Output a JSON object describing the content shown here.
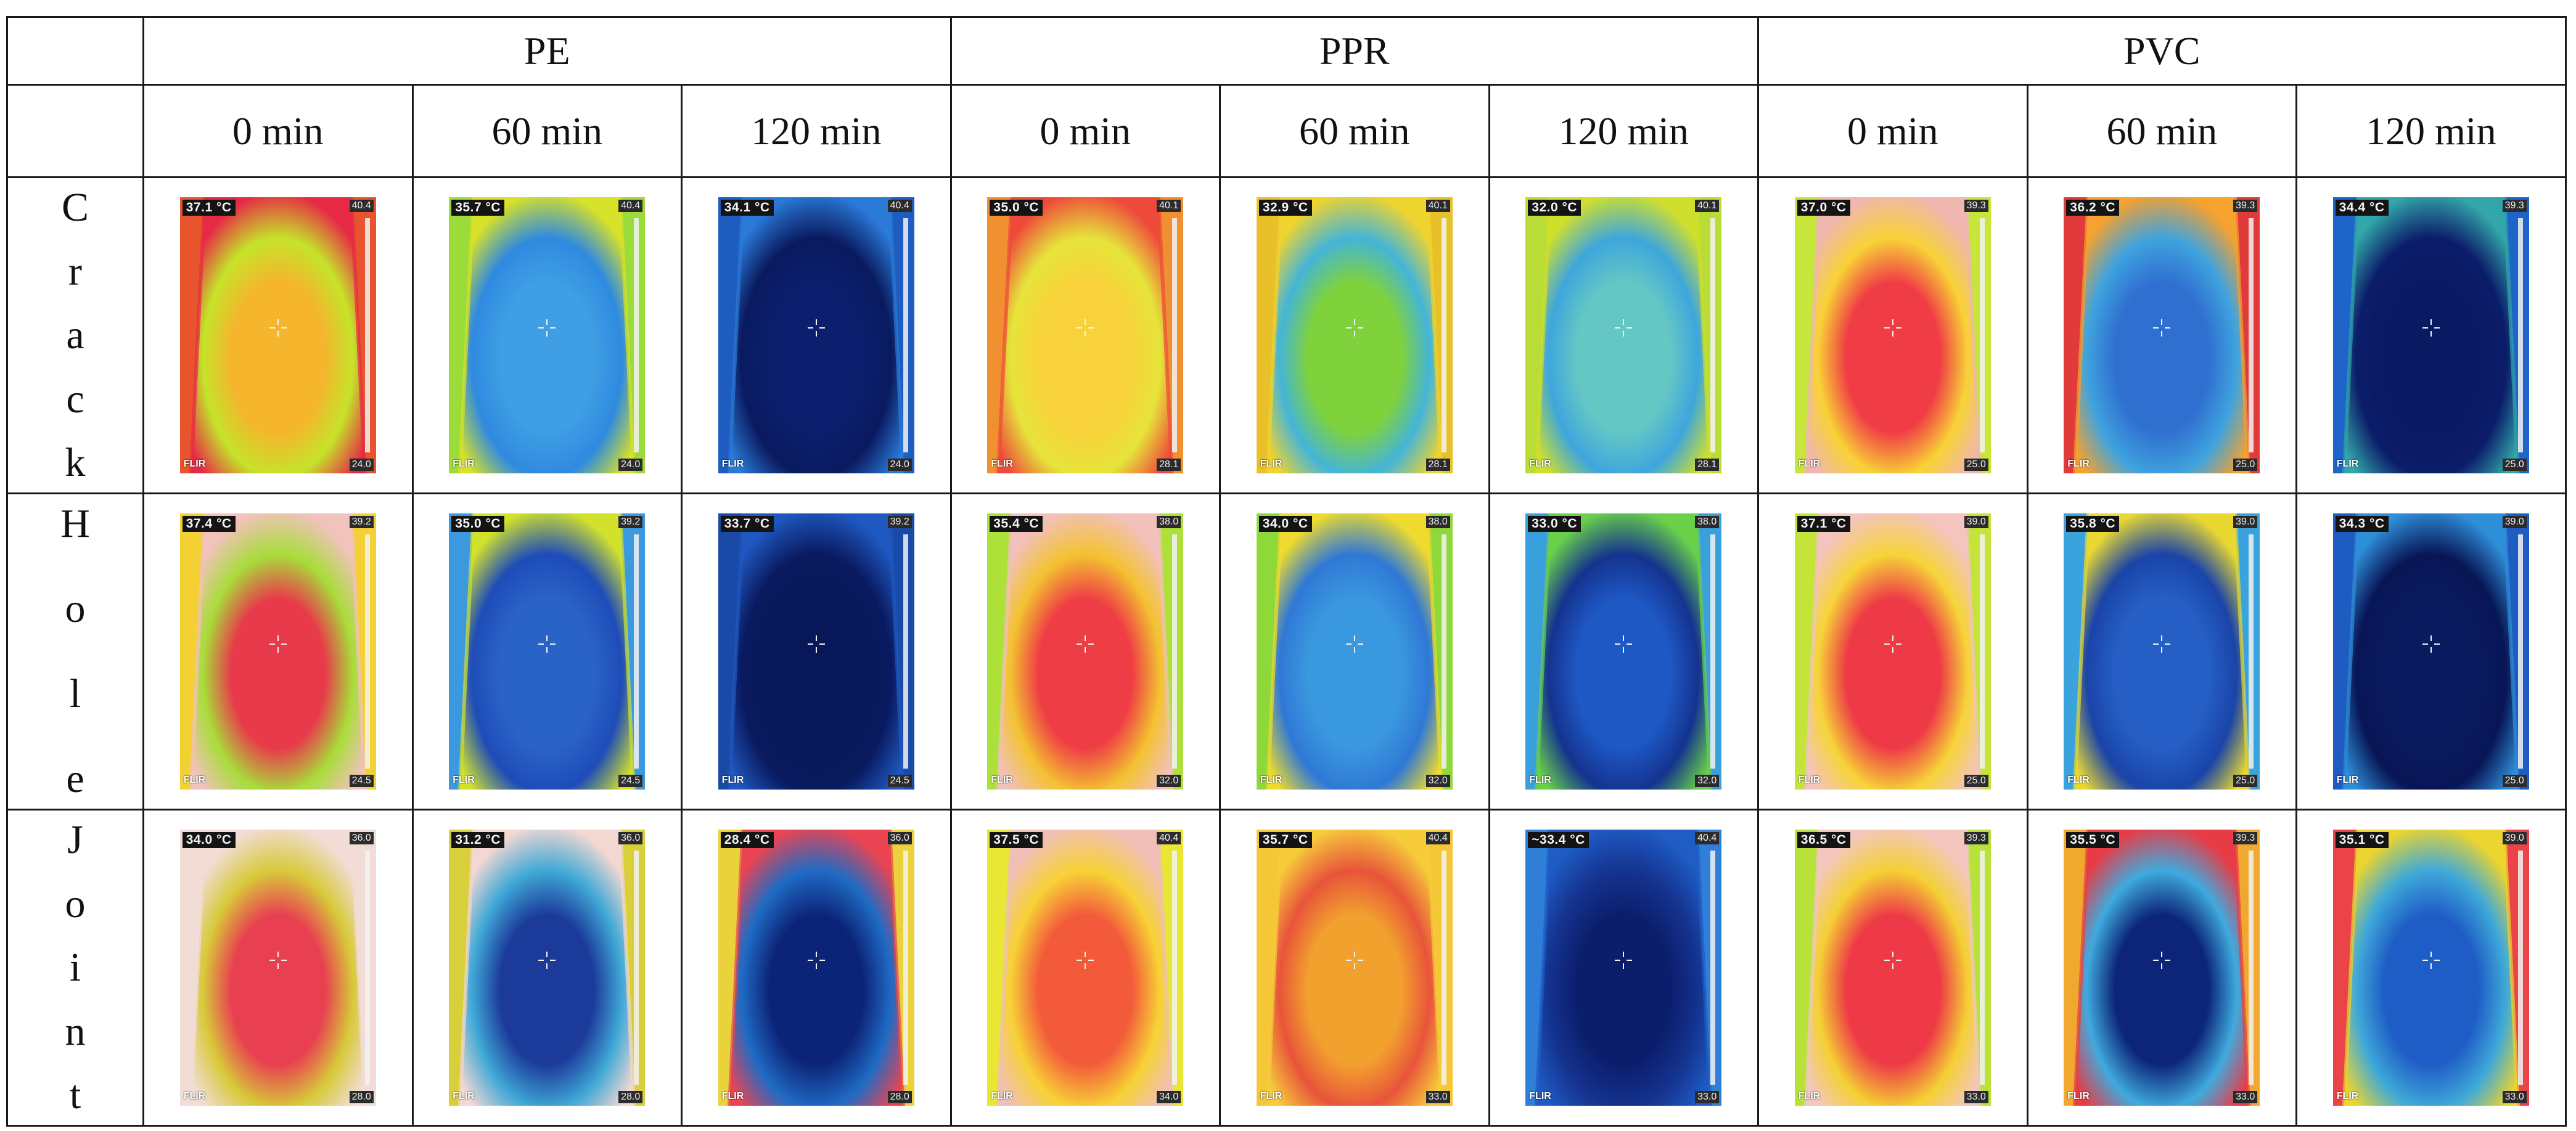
{
  "table": {
    "materials": [
      "PE",
      "PPR",
      "PVC"
    ],
    "times": [
      "0 min",
      "60 min",
      "120 min",
      "0 min",
      "60 min",
      "120 min",
      "0 min",
      "60 min",
      "120 min"
    ],
    "rows": [
      {
        "label": "Crack",
        "letters": [
          "C",
          "r",
          "a",
          "c",
          "k"
        ],
        "cells": [
          {
            "temp": "37.1 °C",
            "max": "40.4",
            "min": "24.0",
            "logo": "FLIR",
            "palette": [
              "#e62a45",
              "#f5b52c",
              "#c5e32a",
              "#e8542e"
            ]
          },
          {
            "temp": "35.7 °C",
            "max": "40.4",
            "min": "24.0",
            "logo": "FLIR",
            "palette": [
              "#d8e228",
              "#3f9ee4",
              "#2f8ae0",
              "#9bdc3a"
            ]
          },
          {
            "temp": "34.1 °C",
            "max": "40.4",
            "min": "24.0",
            "logo": "FLIR",
            "palette": [
              "#2a7ad8",
              "#0b1f6e",
              "#0a1a5f",
              "#1f5cc0"
            ]
          },
          {
            "temp": "35.0 °C",
            "max": "40.1",
            "min": "28.1",
            "logo": "FLIR",
            "palette": [
              "#ee4a3a",
              "#f8d23a",
              "#e6e43a",
              "#f09030"
            ]
          },
          {
            "temp": "32.9 °C",
            "max": "40.1",
            "min": "28.1",
            "logo": "FLIR",
            "palette": [
              "#f0d42e",
              "#7fd23c",
              "#44b5d8",
              "#e7c02a"
            ]
          },
          {
            "temp": "32.0 °C",
            "max": "40.1",
            "min": "28.1",
            "logo": "FLIR",
            "palette": [
              "#cfe02c",
              "#64c7c4",
              "#3ea6dd",
              "#b9dc36"
            ]
          },
          {
            "temp": "37.0 °C",
            "max": "39.3",
            "min": "25.0",
            "logo": "FLIR",
            "palette": [
              "#f0b7b0",
              "#f03c45",
              "#f8d236",
              "#c6e63a"
            ]
          },
          {
            "temp": "36.2 °C",
            "max": "39.3",
            "min": "25.0",
            "logo": "FLIR",
            "palette": [
              "#f6a22e",
              "#2f6fd0",
              "#3fa3de",
              "#e03a3a"
            ]
          },
          {
            "temp": "34.4 °C",
            "max": "39.3",
            "min": "25.0",
            "logo": "FLIR",
            "palette": [
              "#32a6a8",
              "#0a1a62",
              "#0b1c6a",
              "#1f64c8"
            ]
          }
        ]
      },
      {
        "label": "Hole",
        "letters": [
          "H",
          "o",
          "l",
          "e"
        ],
        "cells": [
          {
            "temp": "37.4 °C",
            "max": "39.2",
            "min": "24.5",
            "logo": "FLIR",
            "palette": [
              "#f2c2bd",
              "#e83a4a",
              "#a9dc3a",
              "#f3d033"
            ]
          },
          {
            "temp": "35.0 °C",
            "max": "39.2",
            "min": "24.5",
            "logo": "FLIR",
            "palette": [
              "#d2e22c",
              "#2a63c8",
              "#1e4cb8",
              "#3b99e0"
            ]
          },
          {
            "temp": "33.7 °C",
            "max": "39.2",
            "min": "24.5",
            "logo": "FLIR",
            "palette": [
              "#1f58c0",
              "#081757",
              "#0a1a60",
              "#1a4aa8"
            ]
          },
          {
            "temp": "35.4 °C",
            "max": "38.0",
            "min": "32.0",
            "logo": "FLIR",
            "palette": [
              "#f2c1bb",
              "#ef3d45",
              "#f3c231",
              "#aee03a"
            ]
          },
          {
            "temp": "34.0 °C",
            "max": "38.0",
            "min": "32.0",
            "logo": "FLIR",
            "palette": [
              "#eedb2e",
              "#3a98de",
              "#2f78d6",
              "#8ed83a"
            ]
          },
          {
            "temp": "33.0 °C",
            "max": "38.0",
            "min": "32.0",
            "logo": "FLIR",
            "palette": [
              "#6ad04a",
              "#1e58c4",
              "#14338f",
              "#3aa0dc"
            ]
          },
          {
            "temp": "37.1 °C",
            "max": "39.0",
            "min": "25.0",
            "logo": "FLIR",
            "palette": [
              "#f4c4be",
              "#ee3a46",
              "#f6d438",
              "#c4e43a"
            ]
          },
          {
            "temp": "35.8 °C",
            "max": "39.0",
            "min": "25.0",
            "logo": "FLIR",
            "palette": [
              "#e9d831",
              "#255fc6",
              "#1a44a8",
              "#3aa2dc"
            ]
          },
          {
            "temp": "34.3 °C",
            "max": "39.0",
            "min": "25.0",
            "logo": "FLIR",
            "palette": [
              "#2f8ed8",
              "#0a1a5e",
              "#081656",
              "#1f5cc2"
            ]
          }
        ]
      },
      {
        "label": "Joint",
        "letters": [
          "J",
          "o",
          "i",
          "n",
          "t"
        ],
        "cells": [
          {
            "temp": "34.0 °C",
            "max": "36.0",
            "min": "28.0",
            "logo": "FLIR",
            "palette": [
              "#f1ddd6",
              "#e84050",
              "#d8c93a",
              "#f1ddd6"
            ]
          },
          {
            "temp": "31.2 °C",
            "max": "36.0",
            "min": "28.0",
            "logo": "FLIR",
            "palette": [
              "#f3d8d2",
              "#1c3a9a",
              "#3fa8d6",
              "#d9cf3a"
            ]
          },
          {
            "temp": "28.4 °C",
            "max": "36.0",
            "min": "28.0",
            "logo": "FLIR",
            "palette": [
              "#ea4452",
              "#0c2478",
              "#1f6bc4",
              "#e9d23a"
            ]
          },
          {
            "temp": "37.5 °C",
            "max": "40.4",
            "min": "34.0",
            "logo": "FLIR",
            "palette": [
              "#f0bfb8",
              "#f35a3a",
              "#f7d236",
              "#e9e634"
            ]
          },
          {
            "temp": "35.7 °C",
            "max": "40.4",
            "min": "33.0",
            "logo": "FLIR",
            "palette": [
              "#f6cc3a",
              "#f2a12e",
              "#e8543a",
              "#f5c636"
            ]
          },
          {
            "temp": "~33.4 °C",
            "max": "40.4",
            "min": "33.0",
            "logo": "FLIR",
            "palette": [
              "#1f5cc4",
              "#0b1e6c",
              "#14338f",
              "#2f7ed8"
            ]
          },
          {
            "temp": "36.5 °C",
            "max": "39.3",
            "min": "33.0",
            "logo": "FLIR",
            "palette": [
              "#f3c7c0",
              "#ee3a46",
              "#f4d034",
              "#b8e23a"
            ]
          },
          {
            "temp": "35.5 °C",
            "max": "39.3",
            "min": "33.0",
            "logo": "FLIR",
            "palette": [
              "#e73c46",
              "#0c2578",
              "#3faade",
              "#f0a82e"
            ]
          },
          {
            "temp": "35.1 °C",
            "max": "39.0",
            "min": "33.0",
            "logo": "FLIR",
            "palette": [
              "#ecd52e",
              "#1e5cc6",
              "#3fa9d8",
              "#ea4448"
            ]
          }
        ]
      }
    ]
  }
}
